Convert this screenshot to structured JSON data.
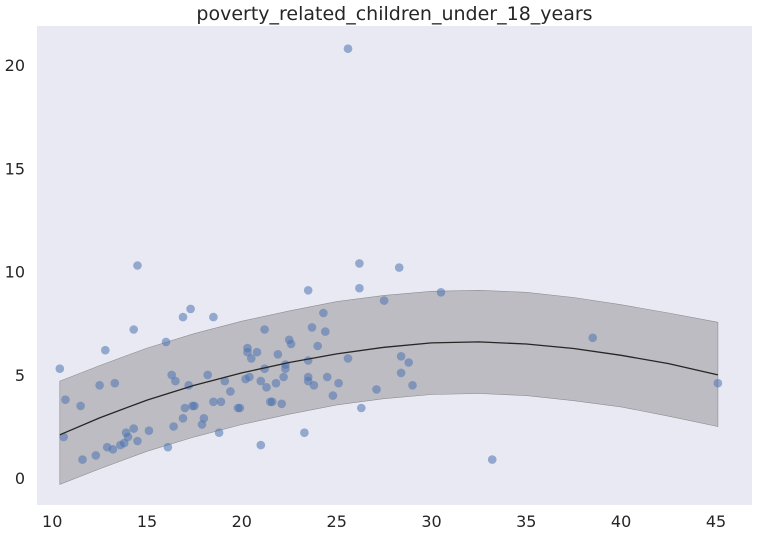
{
  "chart_data": {
    "type": "scatter",
    "title": "poverty_related_children_under_18_years",
    "xlabel": "",
    "ylabel": "",
    "xlim": [
      9.2,
      46.9
    ],
    "ylim": [
      -1.3,
      21.9
    ],
    "xticks": [
      10,
      15,
      20,
      25,
      30,
      35,
      40,
      45
    ],
    "yticks": [
      0,
      5,
      10,
      15,
      20
    ],
    "grid": false,
    "legend": "none",
    "colors": {
      "background": "#e8e9f3",
      "points": "#4c72b0",
      "fit_line": "#262626",
      "band": "#b4b4b8"
    },
    "points": [
      [
        10.4,
        5.3
      ],
      [
        10.6,
        2.0
      ],
      [
        10.7,
        3.8
      ],
      [
        11.5,
        3.5
      ],
      [
        11.6,
        0.9
      ],
      [
        12.3,
        1.1
      ],
      [
        12.5,
        4.5
      ],
      [
        12.8,
        6.2
      ],
      [
        12.9,
        1.5
      ],
      [
        13.2,
        1.4
      ],
      [
        13.3,
        4.6
      ],
      [
        13.6,
        1.6
      ],
      [
        13.8,
        1.7
      ],
      [
        13.9,
        2.2
      ],
      [
        14.0,
        2.0
      ],
      [
        14.3,
        7.2
      ],
      [
        14.3,
        2.4
      ],
      [
        14.5,
        1.8
      ],
      [
        14.5,
        10.3
      ],
      [
        15.1,
        2.3
      ],
      [
        16.0,
        6.6
      ],
      [
        16.1,
        1.5
      ],
      [
        16.3,
        5.0
      ],
      [
        16.4,
        2.5
      ],
      [
        16.5,
        4.7
      ],
      [
        16.9,
        7.8
      ],
      [
        16.9,
        2.9
      ],
      [
        17.0,
        3.4
      ],
      [
        17.2,
        4.5
      ],
      [
        17.3,
        8.2
      ],
      [
        17.4,
        3.5
      ],
      [
        17.5,
        3.5
      ],
      [
        17.9,
        2.6
      ],
      [
        18.0,
        2.9
      ],
      [
        18.2,
        5.0
      ],
      [
        18.5,
        3.7
      ],
      [
        18.5,
        7.8
      ],
      [
        18.8,
        2.2
      ],
      [
        18.9,
        3.7
      ],
      [
        19.1,
        4.7
      ],
      [
        19.4,
        4.2
      ],
      [
        19.8,
        3.4
      ],
      [
        19.9,
        3.4
      ],
      [
        20.2,
        4.8
      ],
      [
        20.3,
        6.3
      ],
      [
        20.3,
        6.1
      ],
      [
        20.4,
        4.9
      ],
      [
        20.5,
        5.8
      ],
      [
        20.8,
        6.1
      ],
      [
        21.0,
        4.7
      ],
      [
        21.0,
        1.6
      ],
      [
        21.2,
        7.2
      ],
      [
        21.2,
        5.3
      ],
      [
        21.3,
        4.4
      ],
      [
        21.5,
        3.7
      ],
      [
        21.6,
        3.7
      ],
      [
        21.8,
        4.6
      ],
      [
        21.9,
        6.0
      ],
      [
        22.1,
        3.6
      ],
      [
        22.2,
        4.9
      ],
      [
        22.3,
        5.5
      ],
      [
        22.3,
        5.3
      ],
      [
        22.5,
        6.7
      ],
      [
        22.6,
        6.5
      ],
      [
        23.3,
        2.2
      ],
      [
        23.5,
        4.9
      ],
      [
        23.5,
        4.7
      ],
      [
        23.5,
        5.7
      ],
      [
        23.5,
        9.1
      ],
      [
        23.7,
        7.3
      ],
      [
        23.8,
        4.5
      ],
      [
        24.0,
        6.4
      ],
      [
        24.3,
        8.0
      ],
      [
        24.4,
        7.1
      ],
      [
        24.5,
        4.9
      ],
      [
        24.8,
        4.0
      ],
      [
        25.1,
        4.6
      ],
      [
        25.6,
        5.8
      ],
      [
        25.6,
        20.8
      ],
      [
        26.2,
        9.2
      ],
      [
        26.2,
        10.4
      ],
      [
        26.3,
        3.4
      ],
      [
        27.1,
        4.3
      ],
      [
        27.5,
        8.6
      ],
      [
        28.3,
        10.2
      ],
      [
        28.4,
        5.9
      ],
      [
        28.4,
        5.1
      ],
      [
        28.8,
        5.6
      ],
      [
        29.0,
        4.5
      ],
      [
        30.5,
        9.0
      ],
      [
        33.2,
        0.9
      ],
      [
        38.5,
        6.8
      ],
      [
        45.1,
        4.6
      ]
    ],
    "fit_line": {
      "x": [
        10.4,
        12.5,
        15,
        17.5,
        20,
        22.5,
        25,
        27.5,
        30,
        32.5,
        35,
        37.5,
        40,
        42.5,
        45.1
      ],
      "y": [
        2.1,
        2.92,
        3.78,
        4.5,
        5.1,
        5.6,
        6.02,
        6.34,
        6.55,
        6.6,
        6.5,
        6.28,
        5.95,
        5.55,
        5.0
      ]
    },
    "band": {
      "x": [
        10.4,
        12.5,
        15,
        17.5,
        20,
        22.5,
        25,
        27.5,
        30,
        32.5,
        35,
        37.5,
        40,
        42.5,
        45.1
      ],
      "upper": [
        4.7,
        5.45,
        6.3,
        7.0,
        7.6,
        8.1,
        8.55,
        8.85,
        9.05,
        9.1,
        9.0,
        8.75,
        8.4,
        8.0,
        7.55
      ],
      "lower": [
        -0.3,
        0.45,
        1.3,
        2.0,
        2.6,
        3.1,
        3.55,
        3.85,
        4.05,
        4.1,
        4.0,
        3.75,
        3.45,
        3.0,
        2.5
      ]
    }
  }
}
